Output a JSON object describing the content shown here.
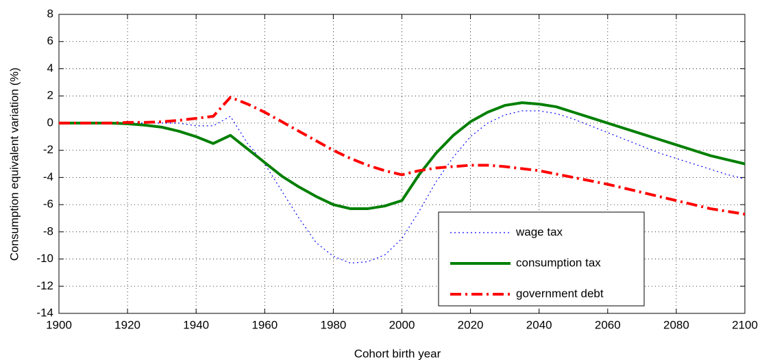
{
  "chart_data": {
    "type": "line",
    "x_label": "Cohort birth year",
    "y_label": "Consumption equivalent variation (%)",
    "x": [
      1900,
      1905,
      1910,
      1915,
      1920,
      1925,
      1930,
      1935,
      1940,
      1945,
      1950,
      1955,
      1960,
      1965,
      1970,
      1975,
      1980,
      1985,
      1990,
      1995,
      2000,
      2005,
      2010,
      2015,
      2020,
      2025,
      2030,
      2035,
      2040,
      2045,
      2050,
      2055,
      2060,
      2065,
      2070,
      2075,
      2080,
      2085,
      2090,
      2095,
      2100
    ],
    "series": [
      {
        "name": "wage tax",
        "color": "#0000ff",
        "line_style": "dotted",
        "line_width": 1.2,
        "values": [
          0,
          0,
          0,
          0,
          0,
          0,
          0,
          0,
          -0.2,
          -0.2,
          0.5,
          -1.5,
          -3,
          -5,
          -7,
          -8.8,
          -9.8,
          -10.3,
          -10.2,
          -9.7,
          -8.5,
          -6.5,
          -4.3,
          -2.5,
          -1,
          0,
          0.6,
          0.9,
          0.9,
          0.7,
          0.3,
          -0.2,
          -0.7,
          -1.2,
          -1.7,
          -2.2,
          -2.6,
          -3.0,
          -3.4,
          -3.8,
          -4.1
        ]
      },
      {
        "name": "consumption tax",
        "color": "#007f00",
        "line_style": "solid",
        "line_width": 4,
        "values": [
          0,
          0,
          0,
          0,
          -0.05,
          -0.15,
          -0.3,
          -0.6,
          -1.0,
          -1.5,
          -0.9,
          -1.9,
          -2.9,
          -3.9,
          -4.7,
          -5.4,
          -6.0,
          -6.3,
          -6.3,
          -6.1,
          -5.7,
          -3.8,
          -2.2,
          -0.9,
          0.1,
          0.8,
          1.3,
          1.5,
          1.4,
          1.2,
          0.8,
          0.4,
          0,
          -0.4,
          -0.8,
          -1.2,
          -1.6,
          -2.0,
          -2.4,
          -2.7,
          -3.0
        ]
      },
      {
        "name": "government debt",
        "color": "#ff0000",
        "line_style": "dashdot",
        "line_width": 4,
        "values": [
          0,
          0,
          0,
          0,
          0.05,
          0.05,
          0.1,
          0.2,
          0.35,
          0.5,
          1.9,
          1.4,
          0.8,
          0.1,
          -0.6,
          -1.3,
          -2.0,
          -2.6,
          -3.1,
          -3.5,
          -3.8,
          -3.5,
          -3.3,
          -3.2,
          -3.1,
          -3.1,
          -3.2,
          -3.35,
          -3.5,
          -3.75,
          -4.0,
          -4.25,
          -4.5,
          -4.8,
          -5.1,
          -5.4,
          -5.7,
          -6.0,
          -6.3,
          -6.5,
          -6.7
        ]
      }
    ],
    "xlim": [
      1900,
      2100
    ],
    "xticks": [
      1900,
      1920,
      1940,
      1960,
      1980,
      2000,
      2020,
      2040,
      2060,
      2080,
      2100
    ],
    "ylim": [
      -14,
      8
    ],
    "yticks": [
      -14,
      -12,
      -10,
      -8,
      -6,
      -4,
      -2,
      0,
      2,
      4,
      6,
      8
    ],
    "grid": true,
    "legend_position": "lower right"
  }
}
